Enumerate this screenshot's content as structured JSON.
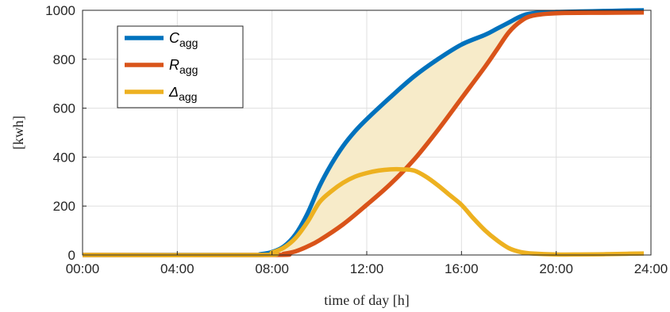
{
  "chart_data": {
    "type": "line",
    "xlabel": "time of day [h]",
    "ylabel": "[kwh]",
    "xlim": [
      0,
      24
    ],
    "ylim": [
      0,
      1000
    ],
    "grid": true,
    "legend_position": "top-left",
    "x_ticks": [
      {
        "value": 0,
        "label": "00:00"
      },
      {
        "value": 4,
        "label": "04:00"
      },
      {
        "value": 8,
        "label": "08:00"
      },
      {
        "value": 12,
        "label": "12:00"
      },
      {
        "value": 16,
        "label": "16:00"
      },
      {
        "value": 20,
        "label": "20:00"
      },
      {
        "value": 24,
        "label": "24:00"
      }
    ],
    "y_ticks": [
      {
        "value": 0,
        "label": "0"
      },
      {
        "value": 200,
        "label": "200"
      },
      {
        "value": 400,
        "label": "400"
      },
      {
        "value": 600,
        "label": "600"
      },
      {
        "value": 800,
        "label": "800"
      },
      {
        "value": 1000,
        "label": "1000"
      }
    ],
    "fill_between": {
      "upper": "C",
      "lower": "R",
      "color": "#f7ebc9"
    },
    "series": [
      {
        "key": "C",
        "symbol": "C",
        "subscript": "agg",
        "color": "#0072BD",
        "x": [
          0,
          7,
          7.5,
          8,
          8.5,
          9,
          9.5,
          10,
          10.5,
          11,
          11.5,
          12,
          13,
          14,
          15,
          16,
          17,
          17.5,
          18,
          18.5,
          19,
          20,
          21,
          22,
          23,
          23.7
        ],
        "y": [
          0,
          0,
          3,
          12,
          35,
          85,
          170,
          280,
          370,
          445,
          505,
          555,
          645,
          730,
          800,
          860,
          900,
          925,
          950,
          975,
          988,
          993,
          995,
          997,
          999,
          1000
        ]
      },
      {
        "key": "R",
        "symbol": "R",
        "subscript": "agg",
        "color": "#D95319",
        "x": [
          0,
          8,
          8.5,
          9,
          9.5,
          10,
          11,
          12,
          13,
          14,
          15,
          16,
          17,
          17.5,
          18,
          18.5,
          19,
          20,
          22,
          23.7
        ],
        "y": [
          0,
          0,
          5,
          15,
          35,
          60,
          125,
          205,
          290,
          390,
          510,
          640,
          770,
          840,
          910,
          955,
          978,
          988,
          990,
          991
        ]
      },
      {
        "key": "D",
        "symbol": "Δ",
        "subscript": "agg",
        "color": "#EDB120",
        "x": [
          0,
          7.5,
          8,
          8.5,
          9,
          9.5,
          10,
          10.5,
          11,
          11.5,
          12,
          12.5,
          13,
          13.5,
          14,
          14.5,
          15,
          15.5,
          16,
          16.5,
          17,
          17.5,
          18,
          18.5,
          19,
          20,
          21,
          22,
          23,
          23.7
        ],
        "y": [
          0,
          0,
          10,
          30,
          70,
          135,
          215,
          260,
          295,
          320,
          335,
          345,
          350,
          350,
          345,
          320,
          285,
          245,
          205,
          150,
          100,
          60,
          28,
          12,
          6,
          2,
          2,
          3,
          5,
          6
        ]
      }
    ]
  }
}
